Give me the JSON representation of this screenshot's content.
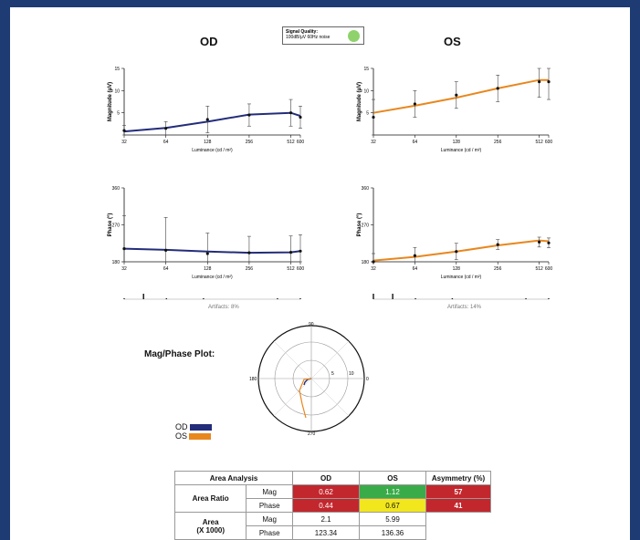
{
  "header": {
    "od_title": "OD",
    "os_title": "OS",
    "signal_quality_label": "Signal Quality:",
    "signal_quality_note": "100dB/μV 60Hz noise",
    "signal_quality_color": "#8fd26c"
  },
  "colors": {
    "od": "#232d7a",
    "os": "#e8871e"
  },
  "chart_data": [
    {
      "type": "line",
      "id": "od_mag",
      "ylabel": "Magnitude (μV)",
      "xlabel": "Luminance (cd / m²)",
      "color": "#232d7a",
      "x": [
        32,
        64,
        128,
        256,
        512,
        600
      ],
      "y": [
        1,
        1.5,
        3.5,
        4.5,
        5,
        4
      ],
      "err": [
        1.2,
        1.5,
        3,
        2.5,
        3,
        2.5
      ],
      "xticks": [
        32,
        64,
        128,
        256,
        512,
        600
      ],
      "yticks": [
        5,
        10,
        15
      ],
      "ylim": [
        0,
        15
      ],
      "xlim": [
        32,
        600
      ],
      "fit": [
        [
          32,
          0.8
        ],
        [
          64,
          1.6
        ],
        [
          128,
          3
        ],
        [
          256,
          4.6
        ],
        [
          512,
          5
        ],
        [
          600,
          4.3
        ]
      ]
    },
    {
      "type": "line",
      "id": "os_mag",
      "ylabel": "Magnitude (μV)",
      "xlabel": "Luminance (cd / m²)",
      "color": "#e8871e",
      "x": [
        32,
        64,
        128,
        256,
        512,
        600
      ],
      "y": [
        4,
        7,
        9,
        10.5,
        12,
        12
      ],
      "err": [
        4,
        3,
        3,
        3,
        3.5,
        4
      ],
      "xticks": [
        32,
        64,
        128,
        256,
        512,
        600
      ],
      "yticks": [
        5,
        10,
        15
      ],
      "ylim": [
        0,
        15
      ],
      "xlim": [
        32,
        600
      ],
      "fit": [
        [
          32,
          5
        ],
        [
          64,
          6.6
        ],
        [
          128,
          8.4
        ],
        [
          256,
          10.5
        ],
        [
          512,
          12.4
        ],
        [
          600,
          12.4
        ]
      ]
    },
    {
      "type": "line",
      "id": "od_phase",
      "ylabel": "Phase (°)",
      "xlabel": "Luminance (cd / m²)",
      "color": "#232d7a",
      "x": [
        32,
        64,
        128,
        256,
        512,
        600
      ],
      "y": [
        212,
        208,
        200,
        202,
        203,
        206
      ],
      "err": [
        80,
        80,
        50,
        40,
        40,
        40
      ],
      "xticks": [
        32,
        64,
        128,
        256,
        512,
        600
      ],
      "yticks": [
        180,
        270,
        360
      ],
      "ylim": [
        180,
        360
      ],
      "xlim": [
        32,
        600
      ],
      "fit": [
        [
          32,
          212
        ],
        [
          64,
          209
        ],
        [
          128,
          205
        ],
        [
          256,
          202
        ],
        [
          512,
          203
        ],
        [
          600,
          206
        ]
      ]
    },
    {
      "type": "line",
      "id": "os_phase",
      "ylabel": "Phase (°)",
      "xlabel": "Luminance (cd / m²)",
      "color": "#e8871e",
      "x": [
        32,
        64,
        128,
        256,
        512,
        600
      ],
      "y": [
        180,
        195,
        205,
        222,
        228,
        226
      ],
      "err": [
        20,
        20,
        20,
        12,
        12,
        12
      ],
      "xticks": [
        32,
        64,
        128,
        256,
        512,
        600
      ],
      "yticks": [
        180,
        270,
        360
      ],
      "ylim": [
        180,
        360
      ],
      "xlim": [
        32,
        600
      ],
      "fit": [
        [
          32,
          183
        ],
        [
          64,
          192
        ],
        [
          128,
          205
        ],
        [
          256,
          220
        ],
        [
          512,
          232
        ],
        [
          600,
          230
        ]
      ]
    }
  ],
  "artifacts": {
    "od": "Artifacts: 8%",
    "os": "Artifacts: 14%"
  },
  "polar": {
    "title": "Mag/Phase Plot:",
    "angles": [
      "90",
      "180",
      "270",
      "0"
    ],
    "radii": [
      "5",
      "10"
    ],
    "od_label": "OD",
    "os_label": "OS"
  },
  "area_table": {
    "header": [
      "Area Analysis",
      "",
      "OD",
      "OS",
      "Asymmetry (%)"
    ],
    "ratio_label": "Area Ratio",
    "area_label": "Area\n(X 1000)",
    "mag": "Mag",
    "phase": "Phase",
    "ratio_mag_od": "0.62",
    "ratio_mag_os": "1.12",
    "ratio_mag_asym": "57",
    "ratio_phase_od": "0.44",
    "ratio_phase_os": "0.67",
    "ratio_phase_asym": "41",
    "area_mag_od": "2.1",
    "area_mag_os": "5.99",
    "area_phase_od": "123.34",
    "area_phase_os": "136.36"
  }
}
